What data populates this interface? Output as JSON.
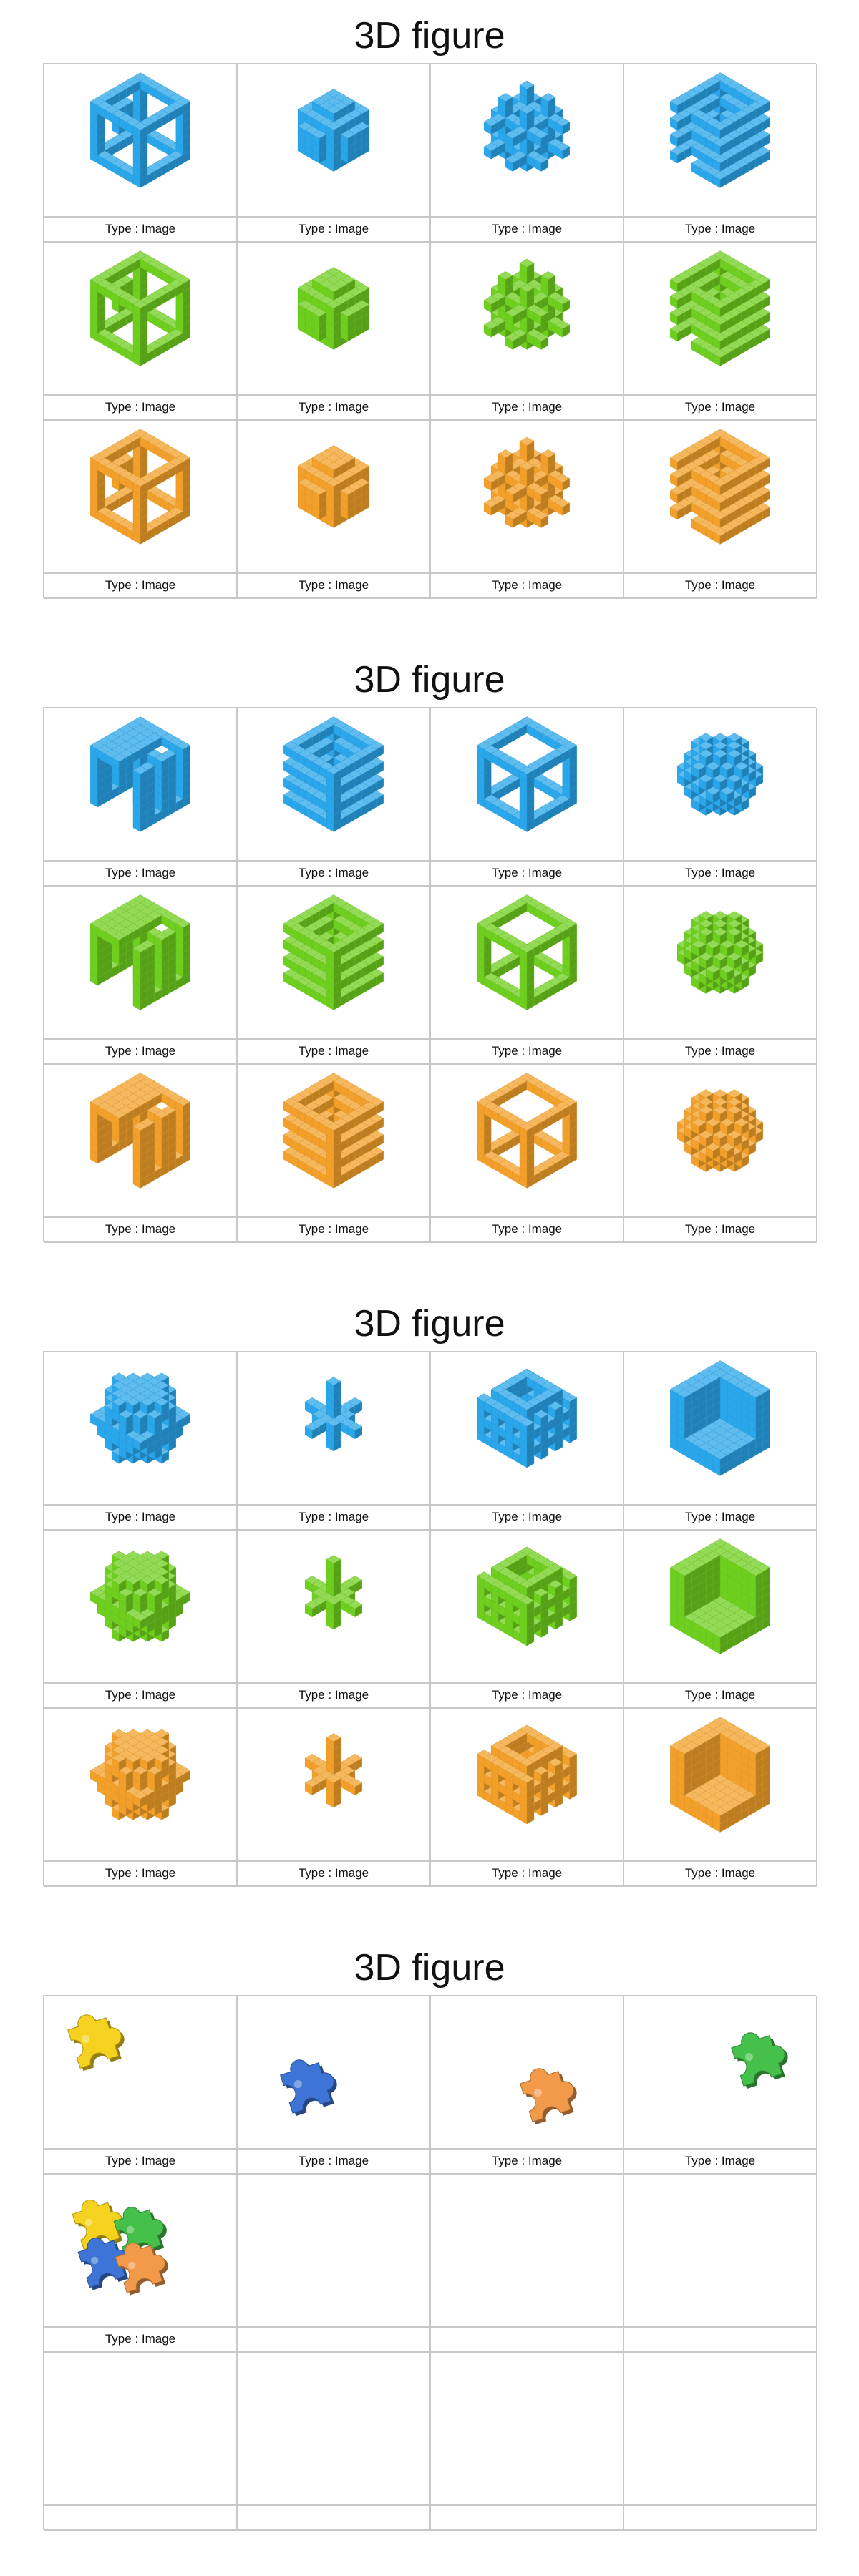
{
  "colors": {
    "blue": "#2aa6ea",
    "green": "#6fcf1f",
    "orange": "#f2a02a"
  },
  "sections": [
    {
      "title": "3D figure",
      "cells": [
        {
          "caption": "Type : Image",
          "icon": "blue-hollow-cube-frame-icon"
        },
        {
          "caption": "Type : Image",
          "icon": "blue-cross-block-icon"
        },
        {
          "caption": "Type : Image",
          "icon": "blue-lattice-cube-icon"
        },
        {
          "caption": "Type : Image",
          "icon": "blue-spiral-stack-icon"
        },
        {
          "caption": "Type : Image",
          "icon": "green-hollow-cube-frame-icon"
        },
        {
          "caption": "Type : Image",
          "icon": "green-cross-block-icon"
        },
        {
          "caption": "Type : Image",
          "icon": "green-lattice-cube-icon"
        },
        {
          "caption": "Type : Image",
          "icon": "green-spiral-stack-icon"
        },
        {
          "caption": "Type : Image",
          "icon": "orange-hollow-cube-frame-icon"
        },
        {
          "caption": "Type : Image",
          "icon": "orange-cross-block-icon"
        },
        {
          "caption": "Type : Image",
          "icon": "orange-lattice-cube-icon"
        },
        {
          "caption": "Type : Image",
          "icon": "orange-spiral-stack-icon"
        }
      ]
    },
    {
      "title": "3D figure",
      "cells": [
        {
          "caption": "Type : Image",
          "icon": "blue-maze-block-icon"
        },
        {
          "caption": "Type : Image",
          "icon": "blue-spiral-cube-icon"
        },
        {
          "caption": "Type : Image",
          "icon": "blue-hexagon-frame-icon"
        },
        {
          "caption": "Type : Image",
          "icon": "blue-checker-cluster-icon"
        },
        {
          "caption": "Type : Image",
          "icon": "green-maze-block-icon"
        },
        {
          "caption": "Type : Image",
          "icon": "green-spiral-cube-icon"
        },
        {
          "caption": "Type : Image",
          "icon": "green-hexagon-frame-icon"
        },
        {
          "caption": "Type : Image",
          "icon": "green-checker-cluster-icon"
        },
        {
          "caption": "Type : Image",
          "icon": "orange-maze-block-icon"
        },
        {
          "caption": "Type : Image",
          "icon": "orange-spiral-cube-icon"
        },
        {
          "caption": "Type : Image",
          "icon": "orange-hexagon-frame-icon"
        },
        {
          "caption": "Type : Image",
          "icon": "orange-checker-cluster-icon"
        }
      ]
    },
    {
      "title": "3D figure",
      "cells": [
        {
          "caption": "Type : Image",
          "icon": "blue-gear-ring-icon"
        },
        {
          "caption": "Type : Image",
          "icon": "blue-spike-star-icon"
        },
        {
          "caption": "Type : Image",
          "icon": "blue-donut-lattice-icon"
        },
        {
          "caption": "Type : Image",
          "icon": "blue-corner-block-icon"
        },
        {
          "caption": "Type : Image",
          "icon": "green-gear-ring-icon"
        },
        {
          "caption": "Type : Image",
          "icon": "green-spike-star-icon"
        },
        {
          "caption": "Type : Image",
          "icon": "green-donut-lattice-icon"
        },
        {
          "caption": "Type : Image",
          "icon": "green-corner-block-icon"
        },
        {
          "caption": "Type : Image",
          "icon": "orange-gear-ring-icon"
        },
        {
          "caption": "Type : Image",
          "icon": "orange-spike-star-icon"
        },
        {
          "caption": "Type : Image",
          "icon": "orange-donut-lattice-icon"
        },
        {
          "caption": "Type : Image",
          "icon": "orange-corner-block-icon"
        }
      ]
    },
    {
      "title": "3D figure",
      "cells": [
        {
          "caption": "Type : Image",
          "icon": "yellow-puzzle-piece-icon"
        },
        {
          "caption": "Type : Image",
          "icon": "blue-puzzle-piece-icon"
        },
        {
          "caption": "Type : Image",
          "icon": "orange-puzzle-piece-icon"
        },
        {
          "caption": "Type : Image",
          "icon": "green-puzzle-piece-icon"
        },
        {
          "caption": "Type : Image",
          "icon": "multicolor-puzzle-cluster-icon"
        },
        {
          "caption": "",
          "icon": ""
        },
        {
          "caption": "",
          "icon": ""
        },
        {
          "caption": "",
          "icon": ""
        },
        {
          "caption": "",
          "icon": ""
        },
        {
          "caption": "",
          "icon": ""
        },
        {
          "caption": "",
          "icon": ""
        },
        {
          "caption": "",
          "icon": ""
        }
      ]
    }
  ]
}
